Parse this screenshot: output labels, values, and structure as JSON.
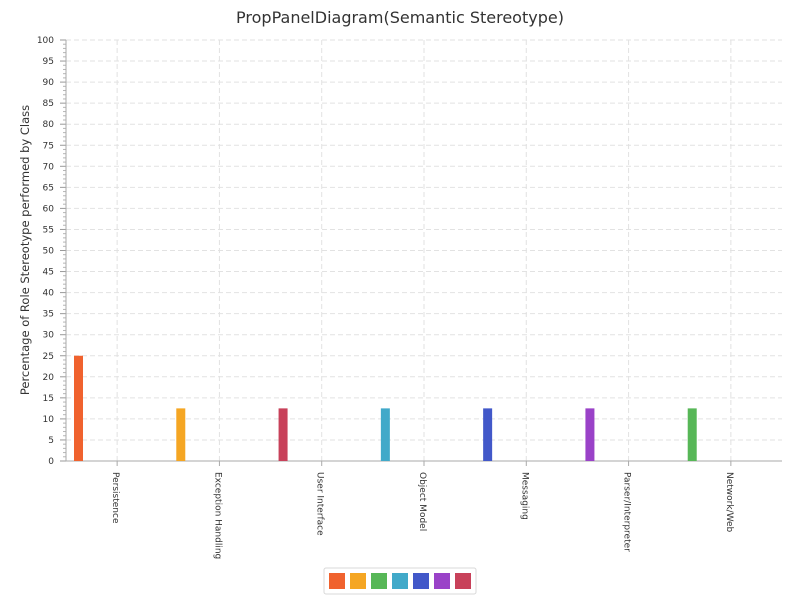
{
  "chart_data": {
    "type": "bar",
    "title": "PropPanelDiagram(Semantic Stereotype)",
    "xlabel": "",
    "ylabel": "Percentage of Role Stereotype performed by Class",
    "ylim": [
      0,
      100
    ],
    "ytick_step": 5,
    "grid": true,
    "legend_position": "bottom",
    "categories": [
      "Persistence",
      "Exception Handling",
      "User Interface",
      "Object Model",
      "Messaging",
      "Parser/Interpreter",
      "Network/Web"
    ],
    "series": [
      {
        "color": "#f0622e",
        "values": [
          25,
          0,
          0,
          0,
          0,
          0,
          0
        ]
      },
      {
        "color": "#f5a623",
        "values": [
          0,
          12.5,
          0,
          0,
          0,
          0,
          0
        ]
      },
      {
        "color": "#57b757",
        "values": [
          0,
          0,
          0,
          0,
          0,
          0,
          12.5
        ]
      },
      {
        "color": "#41a9c9",
        "values": [
          0,
          0,
          0,
          12.5,
          0,
          0,
          0
        ]
      },
      {
        "color": "#4258c9",
        "values": [
          0,
          0,
          0,
          0,
          12.5,
          0,
          0
        ]
      },
      {
        "color": "#9a42c8",
        "values": [
          0,
          0,
          0,
          0,
          0,
          12.5,
          0
        ]
      },
      {
        "color": "#c8415a",
        "values": [
          0,
          0,
          12.5,
          0,
          0,
          0,
          0
        ]
      }
    ]
  }
}
